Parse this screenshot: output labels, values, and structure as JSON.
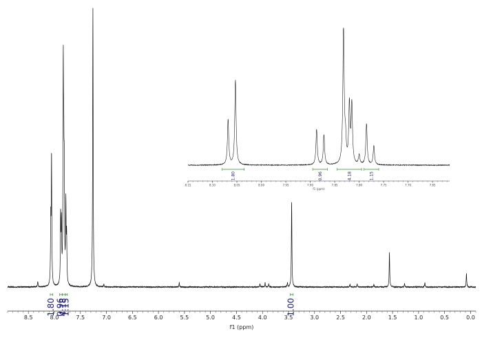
{
  "chart_data": [
    {
      "type": "line",
      "xlabel": "f1 (ppm)",
      "x_reversed": true,
      "xlim": [
        8.9,
        -0.1
      ],
      "x_ticks": [
        "8.5",
        "8.0",
        "7.5",
        "7.0",
        "6.5",
        "6.0",
        "5.5",
        "5.0",
        "4.5",
        "4.0",
        "3.5",
        "3.0",
        "2.5",
        "2.0",
        "1.5",
        "1.0",
        "0.5",
        "0.0"
      ],
      "peaks": [
        {
          "x": 8.32,
          "y": 0.02
        },
        {
          "x": 8.07,
          "y": 0.22
        },
        {
          "x": 8.055,
          "y": 0.46
        },
        {
          "x": 7.88,
          "y": 0.24
        },
        {
          "x": 7.865,
          "y": 0.2
        },
        {
          "x": 7.83,
          "y": 0.73
        },
        {
          "x": 7.82,
          "y": 0.36
        },
        {
          "x": 7.81,
          "y": 0.34
        },
        {
          "x": 7.78,
          "y": 0.28
        },
        {
          "x": 7.765,
          "y": 0.16
        },
        {
          "x": 7.26,
          "y": 1.0
        },
        {
          "x": 7.05,
          "y": 0.01
        },
        {
          "x": 5.6,
          "y": 0.015
        },
        {
          "x": 4.05,
          "y": 0.012
        },
        {
          "x": 3.95,
          "y": 0.015
        },
        {
          "x": 3.88,
          "y": 0.01
        },
        {
          "x": 3.52,
          "y": 0.015
        },
        {
          "x": 3.44,
          "y": 0.31
        },
        {
          "x": 2.32,
          "y": 0.01
        },
        {
          "x": 2.18,
          "y": 0.012
        },
        {
          "x": 1.86,
          "y": 0.01
        },
        {
          "x": 1.56,
          "y": 0.125
        },
        {
          "x": 1.27,
          "y": 0.012
        },
        {
          "x": 0.88,
          "y": 0.015
        },
        {
          "x": 0.08,
          "y": 0.05
        }
      ],
      "integrals": [
        {
          "label": "1.80",
          "from": 8.08,
          "to": 8.03
        },
        {
          "label": "0.96",
          "from": 7.9,
          "to": 7.85
        },
        {
          "label": "4.18",
          "from": 7.85,
          "to": 7.79
        },
        {
          "label": "1.15",
          "from": 7.79,
          "to": 7.75
        },
        {
          "label": "1.00",
          "from": 3.47,
          "to": 3.41
        }
      ]
    },
    {
      "type": "line",
      "xlabel": "f1 (ppm)",
      "x_reversed": true,
      "xlim": [
        8.15,
        7.615
      ],
      "x_ticks": [
        "8.15",
        "8.10",
        "8.05",
        "8.00",
        "7.95",
        "7.90",
        "7.85",
        "7.80",
        "7.75",
        "7.70",
        "7.65"
      ],
      "peaks": [
        {
          "x": 8.068,
          "y": 0.33
        },
        {
          "x": 8.053,
          "y": 0.62
        },
        {
          "x": 7.887,
          "y": 0.26
        },
        {
          "x": 7.872,
          "y": 0.22
        },
        {
          "x": 7.832,
          "y": 1.0
        },
        {
          "x": 7.828,
          "y": 0.16
        },
        {
          "x": 7.82,
          "y": 0.43
        },
        {
          "x": 7.815,
          "y": 0.43
        },
        {
          "x": 7.8,
          "y": 0.07
        },
        {
          "x": 7.785,
          "y": 0.3
        },
        {
          "x": 7.77,
          "y": 0.14
        }
      ],
      "integrals": [
        {
          "label": "1.80",
          "from": 8.08,
          "to": 8.035
        },
        {
          "label": "0.96",
          "from": 7.895,
          "to": 7.865
        },
        {
          "label": "4.18",
          "from": 7.845,
          "to": 7.795
        },
        {
          "label": "1.15",
          "from": 7.79,
          "to": 7.76
        }
      ]
    }
  ]
}
